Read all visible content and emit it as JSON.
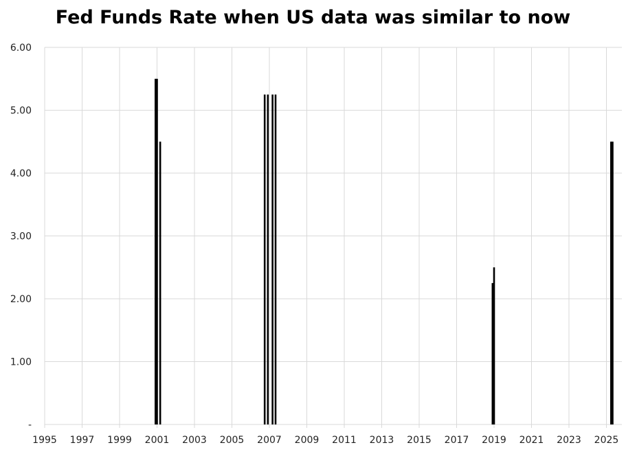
{
  "chart_data": {
    "type": "bar",
    "title": "Fed Funds Rate when US data was similar to now",
    "xlabel": "",
    "ylabel": "",
    "ylim": [
      0,
      6
    ],
    "xlim": [
      1995,
      2025.5
    ],
    "grid": true,
    "legend": "none",
    "bar_color": "#000000",
    "grid_color": "#d9d9d9",
    "x_ticks": [
      "1995",
      "1997",
      "1999",
      "2001",
      "2003",
      "2005",
      "2007",
      "2009",
      "2011",
      "2013",
      "2015",
      "2017",
      "2019",
      "2021",
      "2023",
      "2025"
    ],
    "y_ticks": [
      "-",
      "1.00",
      "2.00",
      "3.00",
      "4.00",
      "5.00",
      "6.00"
    ],
    "x": [
      2000.92,
      2001.0,
      2001.17,
      2006.75,
      2006.92,
      2007.17,
      2007.33,
      2018.92,
      2019.0,
      2025.25,
      2025.33
    ],
    "values": [
      5.5,
      5.5,
      4.5,
      5.25,
      5.25,
      5.25,
      5.25,
      2.25,
      2.5,
      4.5,
      4.5
    ]
  }
}
